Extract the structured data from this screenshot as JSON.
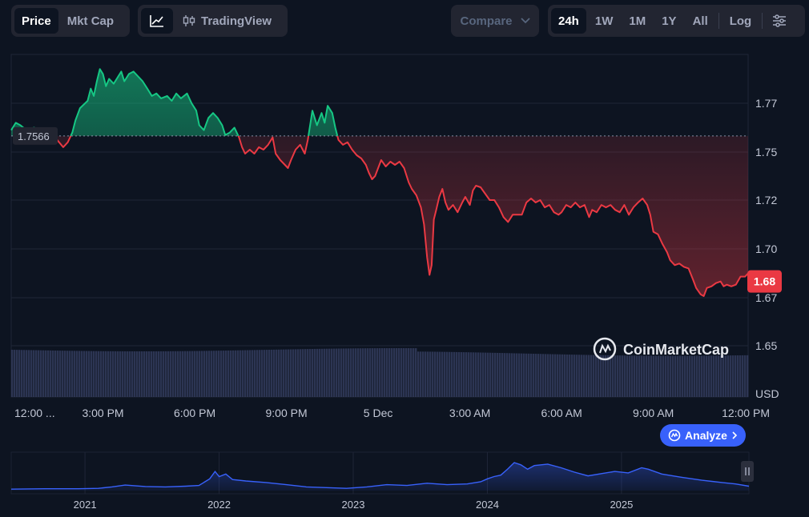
{
  "toolbar": {
    "price_label": "Price",
    "mktcap_label": "Mkt Cap",
    "line_chart_icon": "line-chart-icon",
    "tradingview_label": "TradingView",
    "tradingview_icon": "candlestick-icon",
    "compare_label": "Compare",
    "ranges": [
      "24h",
      "1W",
      "1M",
      "1Y",
      "All"
    ],
    "active_range": "24h",
    "log_label": "Log",
    "settings_icon": "sliders-icon"
  },
  "chart_data": {
    "type": "line",
    "title": "",
    "currency_label": "USD",
    "open_price": 1.7566,
    "open_price_label": "1.7566",
    "current_price": 1.68,
    "current_price_label": "1.68",
    "ylim": [
      1.635,
      1.79
    ],
    "y_ticks": [
      1.65,
      1.67,
      1.7,
      1.72,
      1.75,
      1.77
    ],
    "y_tick_labels": [
      "1.65",
      "1.67",
      "1.70",
      "1.72",
      "1.75",
      "1.77"
    ],
    "x_tick_labels": [
      "12:00 ...",
      "3:00 PM",
      "6:00 PM",
      "9:00 PM",
      "5 Dec",
      "3:00 AM",
      "6:00 AM",
      "9:00 AM",
      "12:00 PM"
    ],
    "x_ticks_hours": [
      0,
      3,
      6,
      9,
      12,
      15,
      18,
      21,
      24
    ],
    "above_color": "#16c784",
    "below_color": "#ea3943",
    "series": [
      {
        "values": [
          [
            0.0,
            1.759
          ],
          [
            0.15,
            1.762
          ],
          [
            0.3,
            1.761
          ],
          [
            0.5,
            1.759
          ],
          [
            0.75,
            1.76
          ],
          [
            1.0,
            1.758
          ],
          [
            1.25,
            1.757
          ],
          [
            1.5,
            1.755
          ],
          [
            1.7,
            1.752
          ],
          [
            1.85,
            1.754
          ],
          [
            2.0,
            1.758
          ],
          [
            2.1,
            1.763
          ],
          [
            2.25,
            1.768
          ],
          [
            2.5,
            1.771
          ],
          [
            2.6,
            1.776
          ],
          [
            2.7,
            1.773
          ],
          [
            2.8,
            1.779
          ],
          [
            2.9,
            1.784
          ],
          [
            3.0,
            1.782
          ],
          [
            3.1,
            1.777
          ],
          [
            3.2,
            1.78
          ],
          [
            3.35,
            1.778
          ],
          [
            3.5,
            1.781
          ],
          [
            3.6,
            1.783
          ],
          [
            3.7,
            1.779
          ],
          [
            3.85,
            1.782
          ],
          [
            4.0,
            1.783
          ],
          [
            4.15,
            1.781
          ],
          [
            4.3,
            1.779
          ],
          [
            4.45,
            1.776
          ],
          [
            4.6,
            1.773
          ],
          [
            4.75,
            1.774
          ],
          [
            4.9,
            1.772
          ],
          [
            5.1,
            1.773
          ],
          [
            5.25,
            1.771
          ],
          [
            5.4,
            1.774
          ],
          [
            5.55,
            1.772
          ],
          [
            5.75,
            1.774
          ],
          [
            5.9,
            1.77
          ],
          [
            6.05,
            1.767
          ],
          [
            6.15,
            1.761
          ],
          [
            6.3,
            1.759
          ],
          [
            6.45,
            1.764
          ],
          [
            6.6,
            1.766
          ],
          [
            6.75,
            1.764
          ],
          [
            6.9,
            1.761
          ],
          [
            7.0,
            1.757
          ],
          [
            7.15,
            1.758
          ],
          [
            7.3,
            1.76
          ],
          [
            7.45,
            1.756
          ],
          [
            7.55,
            1.752
          ],
          [
            7.65,
            1.749
          ],
          [
            7.8,
            1.751
          ],
          [
            7.95,
            1.749
          ],
          [
            8.1,
            1.752
          ],
          [
            8.25,
            1.751
          ],
          [
            8.4,
            1.753
          ],
          [
            8.55,
            1.756
          ],
          [
            8.65,
            1.749
          ],
          [
            8.8,
            1.745
          ],
          [
            8.95,
            1.742
          ],
          [
            9.05,
            1.74
          ],
          [
            9.15,
            1.745
          ],
          [
            9.3,
            1.751
          ],
          [
            9.45,
            1.753
          ],
          [
            9.6,
            1.749
          ],
          [
            9.7,
            1.755
          ],
          [
            9.85,
            1.767
          ],
          [
            10.0,
            1.761
          ],
          [
            10.15,
            1.766
          ],
          [
            10.25,
            1.762
          ],
          [
            10.35,
            1.769
          ],
          [
            10.5,
            1.766
          ],
          [
            10.6,
            1.76
          ],
          [
            10.7,
            1.755
          ],
          [
            10.85,
            1.753
          ],
          [
            11.0,
            1.754
          ],
          [
            11.15,
            1.751
          ],
          [
            11.3,
            1.748
          ],
          [
            11.45,
            1.746
          ],
          [
            11.6,
            1.742
          ],
          [
            11.7,
            1.737
          ],
          [
            11.8,
            1.733
          ],
          [
            11.9,
            1.735
          ],
          [
            12.0,
            1.74
          ],
          [
            12.1,
            1.745
          ],
          [
            12.25,
            1.741
          ],
          [
            12.4,
            1.744
          ],
          [
            12.55,
            1.742
          ],
          [
            12.7,
            1.744
          ],
          [
            12.85,
            1.74
          ],
          [
            13.0,
            1.731
          ],
          [
            13.1,
            1.727
          ],
          [
            13.25,
            1.723
          ],
          [
            13.4,
            1.717
          ],
          [
            13.5,
            1.71
          ],
          [
            13.6,
            1.695
          ],
          [
            13.68,
            1.684
          ],
          [
            13.75,
            1.69
          ],
          [
            13.82,
            1.712
          ],
          [
            13.9,
            1.716
          ],
          [
            14.0,
            1.722
          ],
          [
            14.1,
            1.727
          ],
          [
            14.2,
            1.719
          ],
          [
            14.3,
            1.716
          ],
          [
            14.45,
            1.718
          ],
          [
            14.6,
            1.715
          ],
          [
            14.75,
            1.719
          ],
          [
            14.85,
            1.722
          ],
          [
            15.0,
            1.718
          ],
          [
            15.1,
            1.726
          ],
          [
            15.2,
            1.729
          ],
          [
            15.35,
            1.728
          ],
          [
            15.5,
            1.724
          ],
          [
            15.65,
            1.72
          ],
          [
            15.8,
            1.72
          ],
          [
            15.95,
            1.717
          ],
          [
            16.1,
            1.713
          ],
          [
            16.25,
            1.711
          ],
          [
            16.4,
            1.714
          ],
          [
            16.55,
            1.714
          ],
          [
            16.7,
            1.714
          ],
          [
            16.85,
            1.719
          ],
          [
            17.0,
            1.721
          ],
          [
            17.15,
            1.719
          ],
          [
            17.3,
            1.72
          ],
          [
            17.45,
            1.717
          ],
          [
            17.6,
            1.718
          ],
          [
            17.75,
            1.715
          ],
          [
            17.9,
            1.714
          ],
          [
            18.0,
            1.715
          ],
          [
            18.15,
            1.718
          ],
          [
            18.3,
            1.717
          ],
          [
            18.45,
            1.719
          ],
          [
            18.6,
            1.717
          ],
          [
            18.75,
            1.718
          ],
          [
            18.9,
            1.713
          ],
          [
            19.0,
            1.716
          ],
          [
            19.15,
            1.715
          ],
          [
            19.3,
            1.718
          ],
          [
            19.45,
            1.717
          ],
          [
            19.6,
            1.718
          ],
          [
            19.75,
            1.716
          ],
          [
            19.9,
            1.715
          ],
          [
            20.05,
            1.718
          ],
          [
            20.2,
            1.714
          ],
          [
            20.35,
            1.717
          ],
          [
            20.5,
            1.719
          ],
          [
            20.65,
            1.721
          ],
          [
            20.8,
            1.718
          ],
          [
            20.9,
            1.714
          ],
          [
            21.0,
            1.707
          ],
          [
            21.15,
            1.706
          ],
          [
            21.3,
            1.702
          ],
          [
            21.45,
            1.698
          ],
          [
            21.55,
            1.693
          ],
          [
            21.7,
            1.69
          ],
          [
            21.85,
            1.691
          ],
          [
            22.0,
            1.689
          ],
          [
            22.15,
            1.688
          ],
          [
            22.3,
            1.681
          ],
          [
            22.4,
            1.676
          ],
          [
            22.55,
            1.672
          ],
          [
            22.65,
            1.671
          ],
          [
            22.75,
            1.676
          ],
          [
            22.9,
            1.677
          ],
          [
            23.05,
            1.679
          ],
          [
            23.2,
            1.68
          ],
          [
            23.3,
            1.677
          ],
          [
            23.4,
            1.678
          ],
          [
            23.55,
            1.677
          ],
          [
            23.7,
            1.678
          ],
          [
            23.85,
            1.683
          ],
          [
            24.0,
            1.683
          ],
          [
            24.1,
            1.685
          ]
        ]
      }
    ],
    "history_navigator": {
      "type": "area",
      "x_tick_labels": [
        "2021",
        "2022",
        "2023",
        "2024",
        "2025"
      ],
      "x_ticks_years": [
        2021,
        2022,
        2023,
        2024,
        2025
      ],
      "x_range": [
        2020.45,
        2025.95
      ],
      "values": [
        [
          2020.45,
          0.04
        ],
        [
          2020.7,
          0.05
        ],
        [
          2020.95,
          0.05
        ],
        [
          2021.1,
          0.06
        ],
        [
          2021.2,
          0.1
        ],
        [
          2021.3,
          0.15
        ],
        [
          2021.45,
          0.11
        ],
        [
          2021.6,
          0.1
        ],
        [
          2021.75,
          0.12
        ],
        [
          2021.85,
          0.14
        ],
        [
          2021.93,
          0.32
        ],
        [
          2021.97,
          0.52
        ],
        [
          2022.0,
          0.38
        ],
        [
          2022.05,
          0.45
        ],
        [
          2022.1,
          0.3
        ],
        [
          2022.2,
          0.26
        ],
        [
          2022.35,
          0.22
        ],
        [
          2022.5,
          0.16
        ],
        [
          2022.65,
          0.1
        ],
        [
          2022.8,
          0.08
        ],
        [
          2022.95,
          0.06
        ],
        [
          2023.1,
          0.1
        ],
        [
          2023.25,
          0.16
        ],
        [
          2023.4,
          0.14
        ],
        [
          2023.55,
          0.2
        ],
        [
          2023.7,
          0.16
        ],
        [
          2023.85,
          0.18
        ],
        [
          2023.95,
          0.24
        ],
        [
          2024.0,
          0.32
        ],
        [
          2024.05,
          0.38
        ],
        [
          2024.1,
          0.42
        ],
        [
          2024.15,
          0.58
        ],
        [
          2024.2,
          0.76
        ],
        [
          2024.25,
          0.7
        ],
        [
          2024.3,
          0.58
        ],
        [
          2024.35,
          0.68
        ],
        [
          2024.45,
          0.72
        ],
        [
          2024.55,
          0.62
        ],
        [
          2024.65,
          0.5
        ],
        [
          2024.75,
          0.4
        ],
        [
          2024.85,
          0.46
        ],
        [
          2024.95,
          0.52
        ],
        [
          2025.05,
          0.48
        ],
        [
          2025.15,
          0.62
        ],
        [
          2025.2,
          0.58
        ],
        [
          2025.3,
          0.45
        ],
        [
          2025.45,
          0.36
        ],
        [
          2025.6,
          0.28
        ],
        [
          2025.75,
          0.22
        ],
        [
          2025.85,
          0.18
        ],
        [
          2025.95,
          0.12
        ]
      ]
    }
  },
  "watermark": {
    "brand_label": "CoinMarketCap",
    "logo_icon": "coinmarketcap-logo-icon"
  },
  "analyze": {
    "label": "Analyze",
    "icon": "analyze-icon",
    "chevron_icon": "chevron-right-icon"
  },
  "navigator_handle_icon": "pause-handle-icon"
}
